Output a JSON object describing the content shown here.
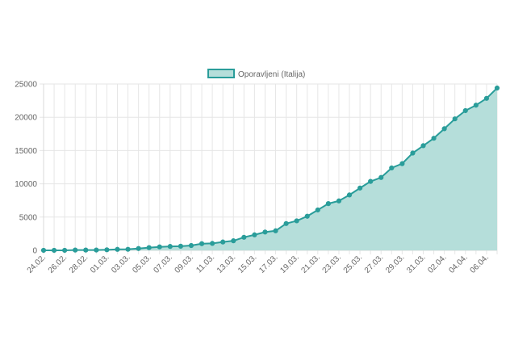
{
  "chart_data": {
    "type": "area",
    "x": [
      "24.02.",
      "25.02.",
      "26.02.",
      "27.02.",
      "28.02.",
      "29.02.",
      "01.03.",
      "02.03.",
      "03.03.",
      "04.03.",
      "05.03.",
      "06.03.",
      "07.03.",
      "08.03.",
      "09.03.",
      "10.03.",
      "11.03.",
      "12.03.",
      "13.03.",
      "14.03.",
      "15.03.",
      "16.03.",
      "17.03.",
      "18.03.",
      "19.03.",
      "20.03.",
      "21.03.",
      "22.03.",
      "23.03.",
      "24.03.",
      "25.03.",
      "26.03.",
      "27.03.",
      "28.03.",
      "29.03.",
      "30.03.",
      "31.03.",
      "01.04.",
      "02.04.",
      "03.04.",
      "04.04.",
      "05.04.",
      "06.04.",
      "07.04."
    ],
    "tick_labels": [
      "24.02.",
      "26.02.",
      "28.02.",
      "01.03.",
      "03.03.",
      "05.03.",
      "07.03.",
      "09.03.",
      "11.03.",
      "13.03.",
      "15.03.",
      "17.03.",
      "19.03.",
      "21.03.",
      "23.03.",
      "25.03.",
      "27.03.",
      "29.03.",
      "31.03.",
      "02.04.",
      "04.04.",
      "06.04."
    ],
    "series": [
      {
        "name": "Oporavljeni (Italija)",
        "values": [
          1,
          1,
          3,
          45,
          46,
          50,
          83,
          149,
          160,
          276,
          414,
          523,
          589,
          622,
          724,
          1004,
          1045,
          1258,
          1439,
          1966,
          2335,
          2749,
          2941,
          4025,
          4440,
          5129,
          6072,
          7024,
          7432,
          8326,
          9362,
          10361,
          10950,
          12384,
          13030,
          14620,
          15729,
          16847,
          18278,
          19758,
          20996,
          21815,
          22837,
          24392
        ]
      }
    ],
    "xlabel": "",
    "ylabel": "",
    "ylim": [
      0,
      25000
    ],
    "yticks": [
      0,
      5000,
      10000,
      15000,
      20000,
      25000
    ],
    "grid": true,
    "legend": "top-center",
    "colors": {
      "line": "#2a9d9a",
      "fill": "#b5deda",
      "grid": "#e6e6e6",
      "axis_text": "#666666"
    }
  }
}
